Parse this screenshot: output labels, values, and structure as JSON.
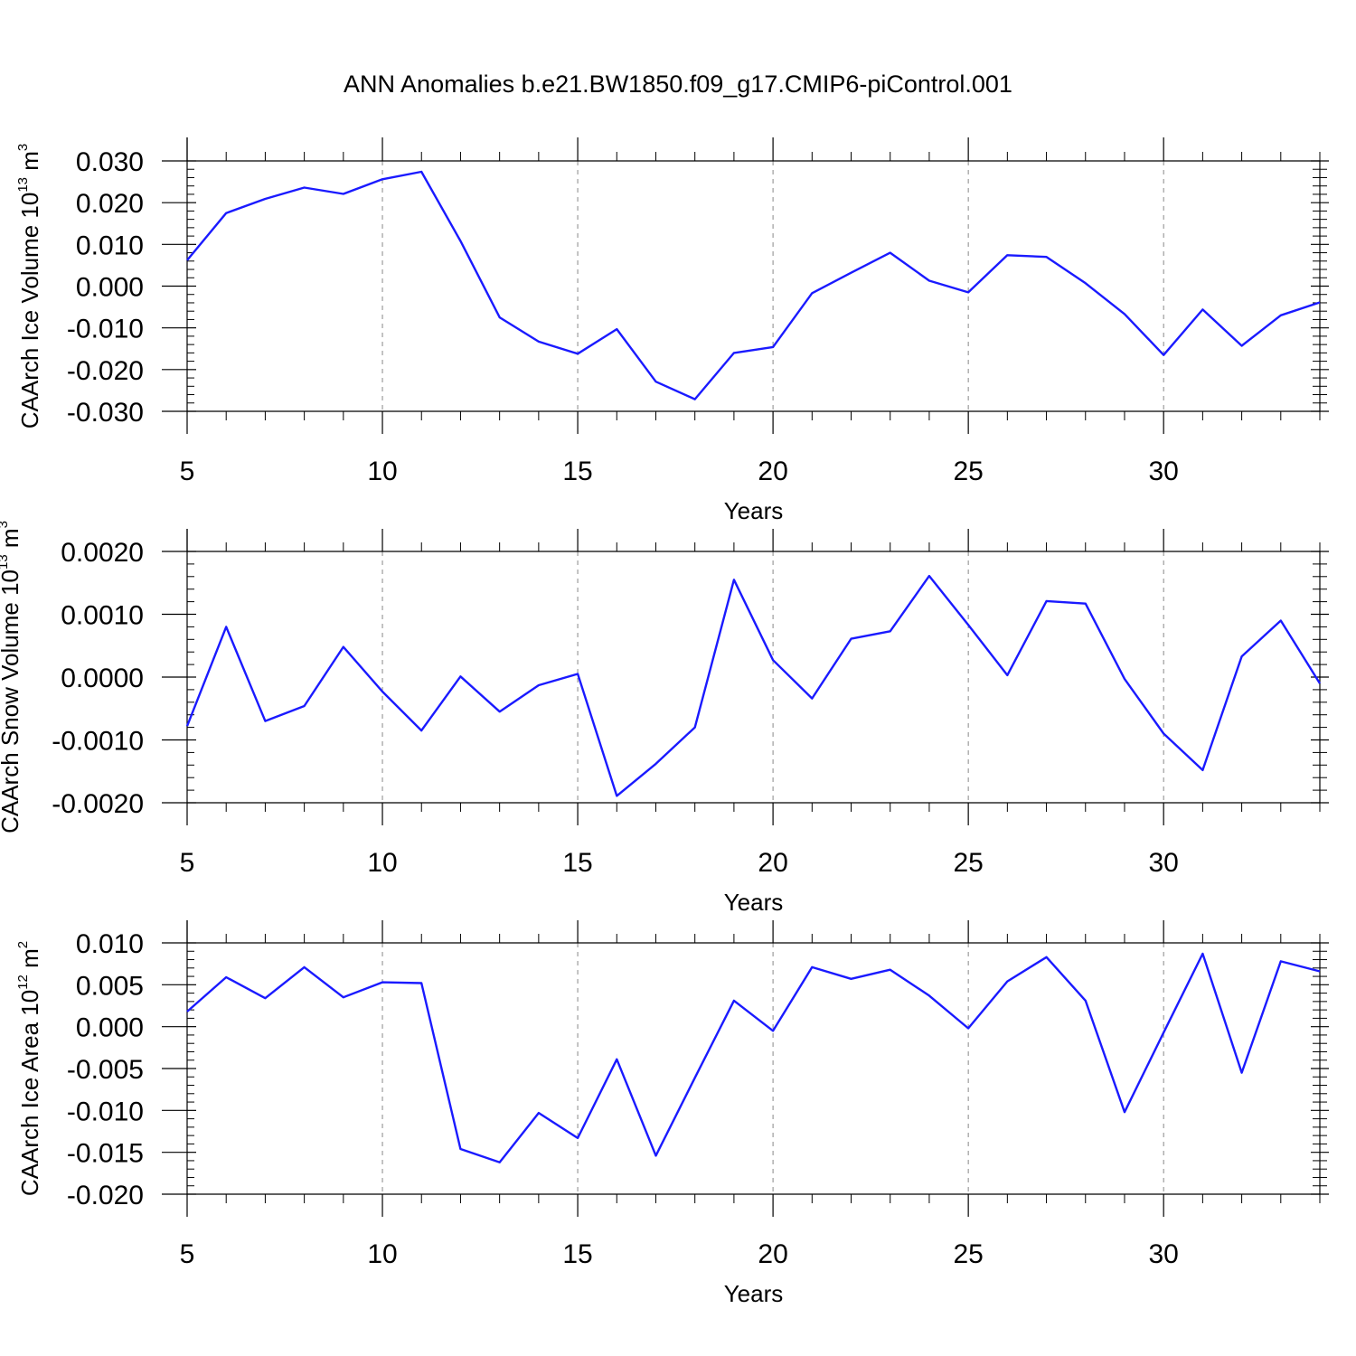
{
  "title": "ANN Anomalies b.e21.BW1850.f09_g17.CMIP6-piControl.001",
  "colors": {
    "line": "#1a1aff",
    "axis": "#000000",
    "grid": "#888888"
  },
  "chart_data": [
    {
      "type": "line",
      "ylabel_prefix": "CAArch Ice Volume 10",
      "ylabel_exp": "13",
      "ylabel_unit": " m",
      "ylabel_unit_exp": "3",
      "xlabel": "Years",
      "xlim": [
        5,
        34
      ],
      "ylim": [
        -0.03,
        0.03
      ],
      "xticks": [
        5,
        10,
        15,
        20,
        25,
        30
      ],
      "yticks": [
        -0.03,
        -0.02,
        -0.01,
        0.0,
        0.01,
        0.02,
        0.03
      ],
      "ytick_labels": [
        "-0.030",
        "-0.020",
        "-0.010",
        "0.000",
        "0.010",
        "0.020",
        "0.030"
      ],
      "grid_x": [
        10,
        15,
        20,
        25,
        30
      ],
      "x": [
        5,
        6,
        7,
        8,
        9,
        10,
        11,
        12,
        13,
        14,
        15,
        16,
        17,
        18,
        19,
        20,
        21,
        22,
        23,
        24,
        25,
        26,
        27,
        28,
        29,
        30,
        31,
        32,
        33,
        34
      ],
      "y": [
        0.0062,
        0.0175,
        0.0209,
        0.0236,
        0.0221,
        0.0256,
        0.0274,
        0.0108,
        -0.0075,
        -0.0133,
        -0.0162,
        -0.0103,
        -0.0229,
        -0.0271,
        -0.016,
        -0.0146,
        -0.0017,
        0.0032,
        0.008,
        0.0013,
        -0.0015,
        0.0074,
        0.007,
        0.0007,
        -0.0067,
        -0.0165,
        -0.0056,
        -0.0143,
        -0.007,
        -0.0039
      ]
    },
    {
      "type": "line",
      "ylabel_prefix": "CAArch Snow Volume 10",
      "ylabel_exp": "13",
      "ylabel_unit": " m",
      "ylabel_unit_exp": "3",
      "xlabel": "Years",
      "xlim": [
        5,
        34
      ],
      "ylim": [
        -0.002,
        0.002
      ],
      "xticks": [
        5,
        10,
        15,
        20,
        25,
        30
      ],
      "yticks": [
        -0.002,
        -0.001,
        0.0,
        0.001,
        0.002
      ],
      "ytick_labels": [
        "-0.0020",
        "-0.0010",
        "0.0000",
        "0.0010",
        "0.0020"
      ],
      "grid_x": [
        10,
        15,
        20,
        25,
        30
      ],
      "x": [
        5,
        6,
        7,
        8,
        9,
        10,
        11,
        12,
        13,
        14,
        15,
        16,
        17,
        18,
        19,
        20,
        21,
        22,
        23,
        24,
        25,
        26,
        27,
        28,
        29,
        30,
        31,
        32,
        33,
        34
      ],
      "y": [
        -0.00078,
        0.0008,
        -0.0007,
        -0.00046,
        0.00048,
        -0.00023,
        -0.00085,
        1e-05,
        -0.00055,
        -0.00013,
        5e-05,
        -0.00189,
        -0.00138,
        -0.0008,
        0.00155,
        0.00027,
        -0.00034,
        0.00061,
        0.00073,
        0.00161,
        0.00083,
        3e-05,
        0.00121,
        0.00117,
        -3e-05,
        -0.0009,
        -0.00148,
        0.00033,
        0.0009,
        -0.0001
      ]
    },
    {
      "type": "line",
      "ylabel_prefix": "CAArch Ice Area 10",
      "ylabel_exp": "12",
      "ylabel_unit": " m",
      "ylabel_unit_exp": "2",
      "xlabel": "Years",
      "xlim": [
        5,
        34
      ],
      "ylim": [
        -0.02,
        0.01
      ],
      "xticks": [
        5,
        10,
        15,
        20,
        25,
        30
      ],
      "yticks": [
        -0.02,
        -0.015,
        -0.01,
        -0.005,
        0.0,
        0.005,
        0.01
      ],
      "ytick_labels": [
        "-0.020",
        "-0.015",
        "-0.010",
        "-0.005",
        "0.000",
        "0.005",
        "0.010"
      ],
      "grid_x": [
        10,
        15,
        20,
        25,
        30
      ],
      "x": [
        5,
        6,
        7,
        8,
        9,
        10,
        11,
        12,
        13,
        14,
        15,
        16,
        17,
        18,
        19,
        20,
        21,
        22,
        23,
        24,
        25,
        26,
        27,
        28,
        29,
        30,
        31,
        32,
        33,
        34
      ],
      "y": [
        0.0018,
        0.0059,
        0.0034,
        0.0071,
        0.0035,
        0.0053,
        0.0052,
        -0.0146,
        -0.0162,
        -0.0103,
        -0.0133,
        -0.0039,
        -0.0154,
        -0.0061,
        0.0031,
        -0.0005,
        0.0071,
        0.0057,
        0.0068,
        0.0037,
        -0.0002,
        0.0054,
        0.0083,
        0.0031,
        -0.0102,
        -0.0007,
        0.0087,
        -0.0055,
        0.0078,
        0.0066
      ]
    }
  ]
}
